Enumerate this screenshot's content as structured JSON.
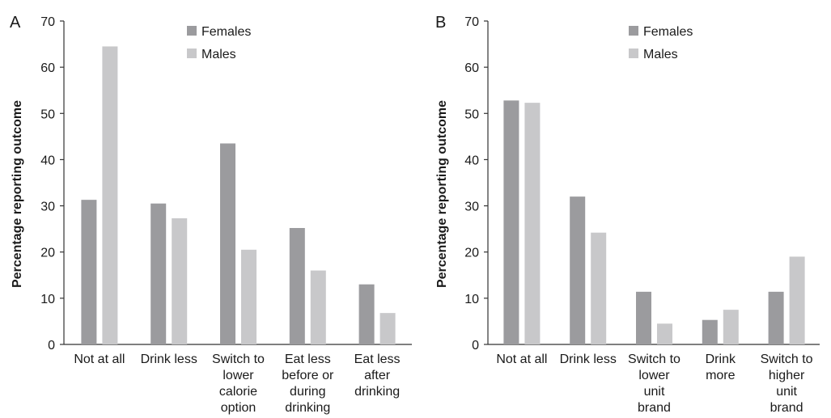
{
  "chart_data": [
    {
      "type": "bar",
      "panel_label": "A",
      "categories": [
        [
          "Not at all"
        ],
        [
          "Drink less"
        ],
        [
          "Switch to",
          "lower",
          "calorie",
          "option"
        ],
        [
          "Eat less",
          "before or",
          "during",
          "drinking"
        ],
        [
          "Eat less",
          "after",
          "drinking"
        ]
      ],
      "series": [
        {
          "name": "Females",
          "color": "#9b9b9e",
          "values": [
            31.3,
            30.5,
            43.5,
            25.2,
            13.0
          ]
        },
        {
          "name": "Males",
          "color": "#c8c8ca",
          "values": [
            64.5,
            27.3,
            20.5,
            16.0,
            6.8
          ]
        }
      ],
      "ylabel": "Percentage reporting outcome",
      "ylim": [
        0,
        70
      ],
      "yticks": [
        0,
        10,
        20,
        30,
        40,
        50,
        60,
        70
      ],
      "grid": false,
      "legend": "top-center"
    },
    {
      "type": "bar",
      "panel_label": "B",
      "categories": [
        [
          "Not at all"
        ],
        [
          "Drink less"
        ],
        [
          "Switch to",
          "lower",
          "unit",
          "brand"
        ],
        [
          "Drink",
          "more"
        ],
        [
          "Switch to",
          "higher",
          "unit",
          "brand"
        ]
      ],
      "series": [
        {
          "name": "Females",
          "color": "#9b9b9e",
          "values": [
            52.8,
            32.0,
            11.4,
            5.3,
            11.4
          ]
        },
        {
          "name": "Males",
          "color": "#c8c8ca",
          "values": [
            52.3,
            24.2,
            4.5,
            7.5,
            19.0
          ]
        }
      ],
      "ylabel": "Percentage reporting outcome",
      "ylim": [
        0,
        70
      ],
      "yticks": [
        0,
        10,
        20,
        30,
        40,
        50,
        60,
        70
      ],
      "grid": false,
      "legend": "top-center"
    }
  ]
}
